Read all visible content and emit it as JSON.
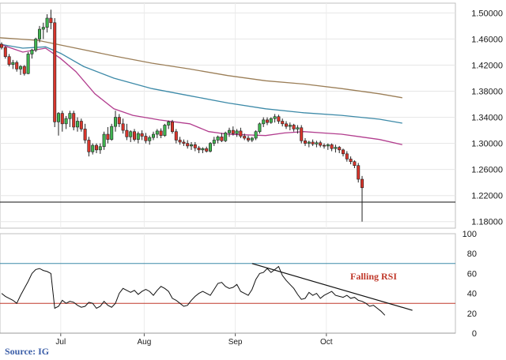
{
  "source": "Source: IG",
  "chart_data": [
    {
      "type": "candlestick",
      "ylim": [
        1.17,
        1.515
      ],
      "yticks": [
        "1.50000",
        "1.46000",
        "1.42000",
        "1.38000",
        "1.34000",
        "1.30000",
        "1.26000",
        "1.22000",
        "1.18000"
      ],
      "ytick_values": [
        1.5,
        1.46,
        1.42,
        1.38,
        1.34,
        1.3,
        1.26,
        1.22,
        1.18
      ],
      "grid": true,
      "x_count": 107,
      "candles": [
        [
          1.452,
          1.455,
          1.444,
          1.447
        ],
        [
          1.447,
          1.449,
          1.43,
          1.433
        ],
        [
          1.433,
          1.437,
          1.418,
          1.421
        ],
        [
          1.421,
          1.428,
          1.414,
          1.424
        ],
        [
          1.424,
          1.427,
          1.41,
          1.414
        ],
        [
          1.414,
          1.42,
          1.405,
          1.418
        ],
        [
          1.418,
          1.42,
          1.404,
          1.407
        ],
        [
          1.407,
          1.44,
          1.406,
          1.437
        ],
        [
          1.437,
          1.445,
          1.43,
          1.443
        ],
        [
          1.443,
          1.462,
          1.44,
          1.46
        ],
        [
          1.46,
          1.48,
          1.455,
          1.475
        ],
        [
          1.475,
          1.485,
          1.46,
          1.478
        ],
        [
          1.478,
          1.498,
          1.47,
          1.492
        ],
        [
          1.492,
          1.505,
          1.475,
          1.485
        ],
        [
          1.485,
          1.492,
          1.325,
          1.333
        ],
        [
          1.333,
          1.348,
          1.312,
          1.346
        ],
        [
          1.346,
          1.35,
          1.318,
          1.33
        ],
        [
          1.33,
          1.342,
          1.322,
          1.338
        ],
        [
          1.338,
          1.35,
          1.325,
          1.346
        ],
        [
          1.346,
          1.35,
          1.32,
          1.325
        ],
        [
          1.325,
          1.34,
          1.318,
          1.334
        ],
        [
          1.334,
          1.338,
          1.318,
          1.322
        ],
        [
          1.322,
          1.33,
          1.3,
          1.305
        ],
        [
          1.305,
          1.31,
          1.28,
          1.287
        ],
        [
          1.287,
          1.3,
          1.283,
          1.297
        ],
        [
          1.297,
          1.3,
          1.285,
          1.29
        ],
        [
          1.29,
          1.3,
          1.284,
          1.295
        ],
        [
          1.295,
          1.318,
          1.29,
          1.314
        ],
        [
          1.314,
          1.325,
          1.3,
          1.306
        ],
        [
          1.306,
          1.33,
          1.304,
          1.326
        ],
        [
          1.326,
          1.35,
          1.318,
          1.34
        ],
        [
          1.34,
          1.345,
          1.325,
          1.33
        ],
        [
          1.33,
          1.338,
          1.315,
          1.32
        ],
        [
          1.32,
          1.33,
          1.305,
          1.31
        ],
        [
          1.31,
          1.32,
          1.302,
          1.318
        ],
        [
          1.318,
          1.322,
          1.303,
          1.306
        ],
        [
          1.306,
          1.318,
          1.3,
          1.315
        ],
        [
          1.315,
          1.32,
          1.305,
          1.311
        ],
        [
          1.311,
          1.316,
          1.3,
          1.304
        ],
        [
          1.304,
          1.312,
          1.298,
          1.309
        ],
        [
          1.309,
          1.318,
          1.305,
          1.314
        ],
        [
          1.314,
          1.322,
          1.308,
          1.319
        ],
        [
          1.319,
          1.323,
          1.308,
          1.312
        ],
        [
          1.312,
          1.33,
          1.31,
          1.328
        ],
        [
          1.328,
          1.335,
          1.322,
          1.333
        ],
        [
          1.333,
          1.336,
          1.315,
          1.318
        ],
        [
          1.318,
          1.322,
          1.3,
          1.305
        ],
        [
          1.305,
          1.31,
          1.298,
          1.302
        ],
        [
          1.302,
          1.306,
          1.296,
          1.3
        ],
        [
          1.3,
          1.305,
          1.292,
          1.296
        ],
        [
          1.296,
          1.302,
          1.29,
          1.298
        ],
        [
          1.298,
          1.302,
          1.288,
          1.293
        ],
        [
          1.293,
          1.296,
          1.285,
          1.29
        ],
        [
          1.29,
          1.294,
          1.285,
          1.292
        ],
        [
          1.292,
          1.295,
          1.286,
          1.288
        ],
        [
          1.288,
          1.302,
          1.286,
          1.3
        ],
        [
          1.3,
          1.31,
          1.296,
          1.305
        ],
        [
          1.305,
          1.312,
          1.3,
          1.31
        ],
        [
          1.31,
          1.316,
          1.302,
          1.304
        ],
        [
          1.304,
          1.318,
          1.302,
          1.316
        ],
        [
          1.316,
          1.324,
          1.31,
          1.32
        ],
        [
          1.32,
          1.326,
          1.312,
          1.315
        ],
        [
          1.315,
          1.322,
          1.31,
          1.319
        ],
        [
          1.319,
          1.324,
          1.308,
          1.311
        ],
        [
          1.311,
          1.315,
          1.305,
          1.308
        ],
        [
          1.308,
          1.312,
          1.302,
          1.305
        ],
        [
          1.305,
          1.31,
          1.302,
          1.308
        ],
        [
          1.308,
          1.32,
          1.305,
          1.318
        ],
        [
          1.318,
          1.332,
          1.315,
          1.33
        ],
        [
          1.33,
          1.34,
          1.325,
          1.336
        ],
        [
          1.336,
          1.34,
          1.328,
          1.332
        ],
        [
          1.332,
          1.34,
          1.33,
          1.338
        ],
        [
          1.338,
          1.345,
          1.332,
          1.341
        ],
        [
          1.341,
          1.344,
          1.33,
          1.334
        ],
        [
          1.334,
          1.338,
          1.326,
          1.33
        ],
        [
          1.33,
          1.334,
          1.322,
          1.326
        ],
        [
          1.326,
          1.332,
          1.32,
          1.328
        ],
        [
          1.328,
          1.33,
          1.318,
          1.322
        ],
        [
          1.322,
          1.328,
          1.315,
          1.324
        ],
        [
          1.324,
          1.328,
          1.3,
          1.304
        ],
        [
          1.304,
          1.308,
          1.296,
          1.3
        ],
        [
          1.3,
          1.304,
          1.294,
          1.302
        ],
        [
          1.302,
          1.306,
          1.296,
          1.299
        ],
        [
          1.299,
          1.304,
          1.294,
          1.301
        ],
        [
          1.301,
          1.304,
          1.294,
          1.297
        ],
        [
          1.297,
          1.3,
          1.292,
          1.296
        ],
        [
          1.296,
          1.3,
          1.29,
          1.298
        ],
        [
          1.298,
          1.3,
          1.288,
          1.292
        ],
        [
          1.292,
          1.298,
          1.286,
          1.294
        ],
        [
          1.294,
          1.296,
          1.285,
          1.29
        ],
        [
          1.29,
          1.292,
          1.28,
          1.284
        ],
        [
          1.284,
          1.288,
          1.272,
          1.276
        ],
        [
          1.276,
          1.28,
          1.268,
          1.272
        ],
        [
          1.272,
          1.274,
          1.262,
          1.266
        ],
        [
          1.266,
          1.27,
          1.24,
          1.245
        ],
        [
          1.245,
          1.25,
          1.18,
          1.232
        ]
      ],
      "ma_tan": [
        [
          0,
          1.462
        ],
        [
          10,
          1.458
        ],
        [
          20,
          1.446
        ],
        [
          30,
          1.434
        ],
        [
          40,
          1.423
        ],
        [
          50,
          1.414
        ],
        [
          60,
          1.404
        ],
        [
          70,
          1.396
        ],
        [
          80,
          1.391
        ],
        [
          90,
          1.384
        ],
        [
          100,
          1.376
        ],
        [
          106,
          1.37
        ]
      ],
      "ma_blue": [
        [
          0,
          1.452
        ],
        [
          6,
          1.446
        ],
        [
          12,
          1.448
        ],
        [
          16,
          1.438
        ],
        [
          22,
          1.418
        ],
        [
          30,
          1.4
        ],
        [
          40,
          1.384
        ],
        [
          50,
          1.373
        ],
        [
          60,
          1.362
        ],
        [
          70,
          1.353
        ],
        [
          80,
          1.347
        ],
        [
          90,
          1.343
        ],
        [
          100,
          1.337
        ],
        [
          106,
          1.331
        ]
      ],
      "ma_pink": [
        [
          0,
          1.452
        ],
        [
          6,
          1.44
        ],
        [
          12,
          1.446
        ],
        [
          16,
          1.43
        ],
        [
          20,
          1.41
        ],
        [
          25,
          1.376
        ],
        [
          30,
          1.353
        ],
        [
          35,
          1.343
        ],
        [
          42,
          1.336
        ],
        [
          50,
          1.33
        ],
        [
          55,
          1.318
        ],
        [
          60,
          1.314
        ],
        [
          70,
          1.312
        ],
        [
          75,
          1.316
        ],
        [
          80,
          1.318
        ],
        [
          85,
          1.316
        ],
        [
          90,
          1.314
        ],
        [
          95,
          1.31
        ],
        [
          100,
          1.306
        ],
        [
          106,
          1.298
        ]
      ],
      "reference_level": 1.21
    },
    {
      "type": "line",
      "ylim": [
        0,
        100
      ],
      "yticks": [
        100,
        80,
        60,
        40,
        20,
        0
      ],
      "hlines": [
        70,
        30
      ],
      "series": [
        {
          "values": [
            40,
            37,
            35,
            33,
            30,
            38,
            45,
            52,
            60,
            64,
            65,
            63,
            62,
            60,
            25,
            27,
            33,
            30,
            32,
            31,
            28,
            26,
            27,
            31,
            30,
            25,
            27,
            32,
            28,
            26,
            30,
            40,
            45,
            43,
            41,
            43,
            39,
            42,
            44,
            42,
            38,
            43,
            47,
            45,
            42,
            35,
            33,
            30,
            27,
            28,
            33,
            37,
            40,
            42,
            40,
            38,
            44,
            50,
            51,
            47,
            45,
            46,
            49,
            42,
            40,
            38,
            44,
            54,
            60,
            61,
            65,
            61,
            64,
            67,
            58,
            53,
            49,
            45,
            39,
            34,
            35,
            41,
            38,
            40,
            35,
            38,
            40,
            42,
            38,
            37,
            36,
            38,
            35,
            36,
            33,
            32,
            30,
            27,
            28,
            25,
            22,
            18
          ]
        }
      ],
      "trendline": {
        "x0": 66,
        "y0": 70,
        "x1": 107,
        "y1": 23
      },
      "annotation": "Falling RSI"
    }
  ],
  "x_axis": {
    "tick_labels": [
      "Jul",
      "Aug",
      "Sep",
      "Oct"
    ],
    "tick_index": [
      16,
      38,
      62,
      86
    ]
  }
}
